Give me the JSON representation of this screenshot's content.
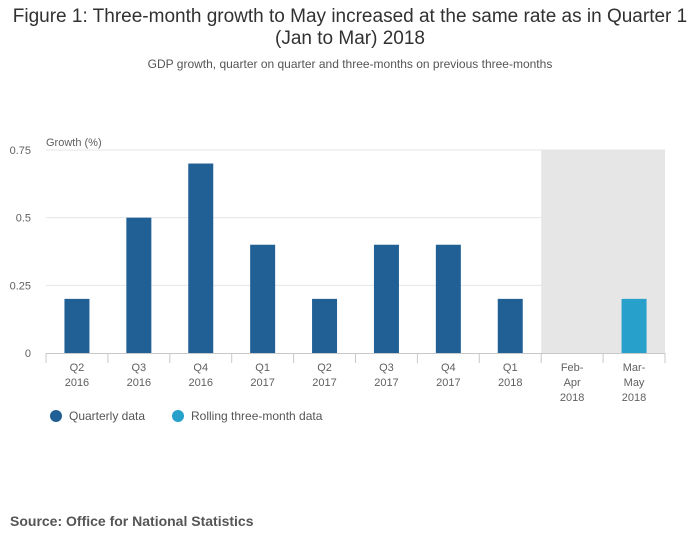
{
  "chart_data": {
    "type": "bar",
    "title": "Figure 1: Three-month growth to May increased at the same rate as in Quarter 1 (Jan to Mar) 2018",
    "subtitle": "GDP growth, quarter on quarter and three-months on previous three-months",
    "ylabel": "Growth (%)",
    "xlabel": "",
    "ylim": [
      0,
      0.75
    ],
    "yticks": [
      "0",
      "0.25",
      "0.5",
      "0.75"
    ],
    "ytick_values": [
      0,
      0.25,
      0.5,
      0.75
    ],
    "categories": [
      [
        "Q2",
        "2016"
      ],
      [
        "Q3",
        "2016"
      ],
      [
        "Q4",
        "2016"
      ],
      [
        "Q1",
        "2017"
      ],
      [
        "Q2",
        "2017"
      ],
      [
        "Q3",
        "2017"
      ],
      [
        "Q4",
        "2017"
      ],
      [
        "Q1",
        "2018"
      ],
      [
        "Feb-",
        "Apr",
        "2018"
      ],
      [
        "Mar-",
        "May",
        "2018"
      ]
    ],
    "series": [
      {
        "name": "Quarterly data",
        "color": "#206095",
        "values": [
          0.2,
          0.5,
          0.7,
          0.4,
          0.2,
          0.4,
          0.4,
          0.2,
          null,
          null
        ]
      },
      {
        "name": "Rolling three-month data",
        "color": "#27a0cc",
        "values": [
          null,
          null,
          null,
          null,
          null,
          null,
          null,
          null,
          null,
          0.2
        ]
      }
    ],
    "shaded_categories": [
      8,
      9
    ],
    "shade_color": "#e6e6e6",
    "grid": true,
    "legend_position": "bottom-left"
  },
  "source": "Source: Office for National Statistics"
}
